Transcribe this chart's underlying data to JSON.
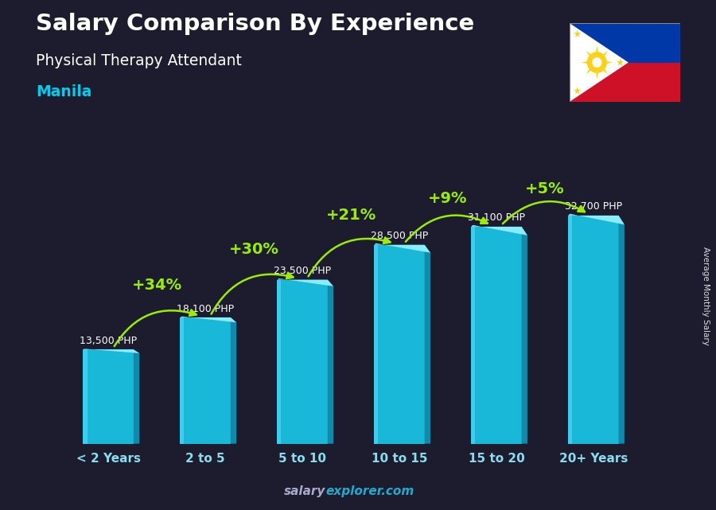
{
  "title": "Salary Comparison By Experience",
  "subtitle": "Physical Therapy Attendant",
  "city": "Manila",
  "categories": [
    "< 2 Years",
    "2 to 5",
    "5 to 10",
    "10 to 15",
    "15 to 20",
    "20+ Years"
  ],
  "values": [
    13500,
    18100,
    23500,
    28500,
    31100,
    32700
  ],
  "labels": [
    "13,500 PHP",
    "18,100 PHP",
    "23,500 PHP",
    "28,500 PHP",
    "31,100 PHP",
    "32,700 PHP"
  ],
  "pct_changes": [
    "+34%",
    "+30%",
    "+21%",
    "+9%",
    "+5%"
  ],
  "bar_color_main": "#1ab8d8",
  "bar_color_light": "#55ddff",
  "bar_color_dark": "#0e8aaa",
  "bar_color_top": "#88eeff",
  "background_color": "#1c1c2e",
  "title_color": "#ffffff",
  "subtitle_color": "#ffffff",
  "city_color": "#00ccee",
  "label_color": "#ffffff",
  "pct_color": "#99ee00",
  "arrow_color": "#99ee00",
  "ylabel": "Average Monthly Salary",
  "watermark_salary": "salary",
  "watermark_explorer": "explorer.com",
  "watermark_color_1": "#aaaacc",
  "watermark_color_2": "#22aacc",
  "ylim": [
    0,
    38000
  ],
  "bar_width": 0.52,
  "flag_blue": "#0038a8",
  "flag_red": "#ce1126",
  "flag_white": "#ffffff",
  "flag_yellow": "#fcd116"
}
